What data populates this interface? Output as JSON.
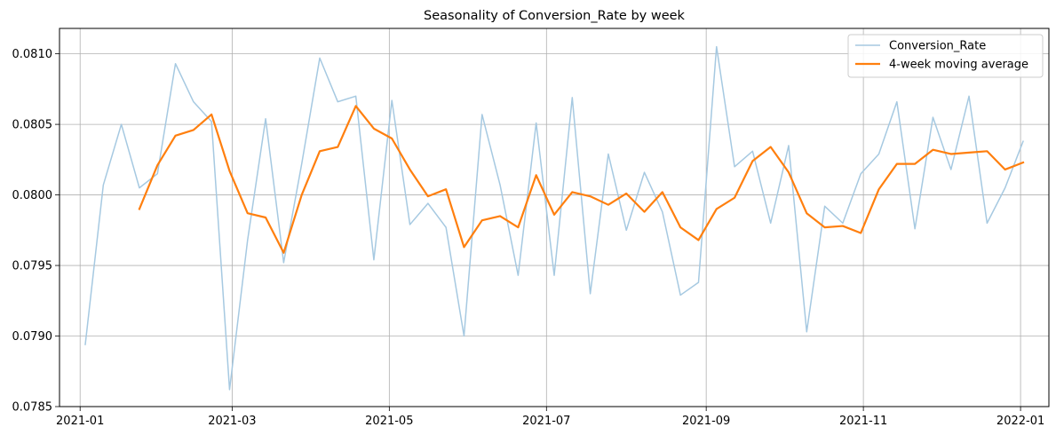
{
  "chart_data": {
    "type": "line",
    "title": "Seasonality of Conversion_Rate by week",
    "xlabel": "",
    "ylabel": "",
    "x": [
      "2021-01-03",
      "2021-01-10",
      "2021-01-17",
      "2021-01-24",
      "2021-01-31",
      "2021-02-07",
      "2021-02-14",
      "2021-02-21",
      "2021-02-28",
      "2021-03-07",
      "2021-03-14",
      "2021-03-21",
      "2021-03-28",
      "2021-04-04",
      "2021-04-11",
      "2021-04-18",
      "2021-04-25",
      "2021-05-02",
      "2021-05-09",
      "2021-05-16",
      "2021-05-23",
      "2021-05-30",
      "2021-06-06",
      "2021-06-13",
      "2021-06-20",
      "2021-06-27",
      "2021-07-04",
      "2021-07-11",
      "2021-07-18",
      "2021-07-25",
      "2021-08-01",
      "2021-08-08",
      "2021-08-15",
      "2021-08-22",
      "2021-08-29",
      "2021-09-05",
      "2021-09-12",
      "2021-09-19",
      "2021-09-26",
      "2021-10-03",
      "2021-10-10",
      "2021-10-17",
      "2021-10-24",
      "2021-10-31",
      "2021-11-07",
      "2021-11-14",
      "2021-11-21",
      "2021-11-28",
      "2021-12-05",
      "2021-12-12",
      "2021-12-19",
      "2021-12-26",
      "2022-01-02"
    ],
    "series": [
      {
        "name": "Conversion_Rate",
        "color": "#a6c9e1",
        "values": [
          0.07894,
          0.08007,
          0.0805,
          0.08005,
          0.08015,
          0.08093,
          0.08066,
          0.08052,
          0.07862,
          0.07968,
          0.08054,
          0.07952,
          0.08022,
          0.08097,
          0.08066,
          0.0807,
          0.07954,
          0.08067,
          0.07979,
          0.07994,
          0.07977,
          0.079,
          0.08057,
          0.08007,
          0.07943,
          0.08051,
          0.07943,
          0.08069,
          0.0793,
          0.08029,
          0.07975,
          0.08016,
          0.07988,
          0.07929,
          0.07938,
          0.08105,
          0.0802,
          0.08031,
          0.0798,
          0.08035,
          0.07903,
          0.07992,
          0.0798,
          0.08015,
          0.08029,
          0.08066,
          0.07976,
          0.08055,
          0.08018,
          0.0807,
          0.0798,
          0.08005,
          0.08038
        ]
      },
      {
        "name": "4-week moving average",
        "color": "#ff7f0e",
        "values": [
          null,
          null,
          null,
          0.0799,
          0.08021,
          0.08042,
          0.08046,
          0.08057,
          0.08017,
          0.07987,
          0.07984,
          0.07959,
          0.08,
          0.08031,
          0.08034,
          0.08063,
          0.08047,
          0.0804,
          0.08018,
          0.07999,
          0.08004,
          0.07963,
          0.07982,
          0.07985,
          0.07977,
          0.08014,
          0.07986,
          0.08002,
          0.07999,
          0.07993,
          0.08001,
          0.07988,
          0.08002,
          0.07977,
          0.07968,
          0.0799,
          0.07998,
          0.08024,
          0.08034,
          0.08016,
          0.07987,
          0.07977,
          0.07978,
          0.07973,
          0.08004,
          0.08022,
          0.08022,
          0.08032,
          0.08029,
          0.0803,
          0.08031,
          0.08018,
          0.08023
        ]
      }
    ],
    "ylim": [
      0.0785,
      0.08118
    ],
    "xlim": [
      "2020-12-24",
      "2022-01-12"
    ],
    "yticks": [
      0.0785,
      0.079,
      0.0795,
      0.08,
      0.0805,
      0.081
    ],
    "ytick_labels": [
      "0.0785",
      "0.0790",
      "0.0795",
      "0.0800",
      "0.0805",
      "0.0810"
    ],
    "xticks": [
      "2021-01-01",
      "2021-03-01",
      "2021-05-01",
      "2021-07-01",
      "2021-09-01",
      "2021-11-01",
      "2022-01-01"
    ],
    "xtick_labels": [
      "2021-01",
      "2021-03",
      "2021-05",
      "2021-07",
      "2021-09",
      "2021-11",
      "2022-01"
    ],
    "grid": true,
    "legend_position": "top-right"
  }
}
